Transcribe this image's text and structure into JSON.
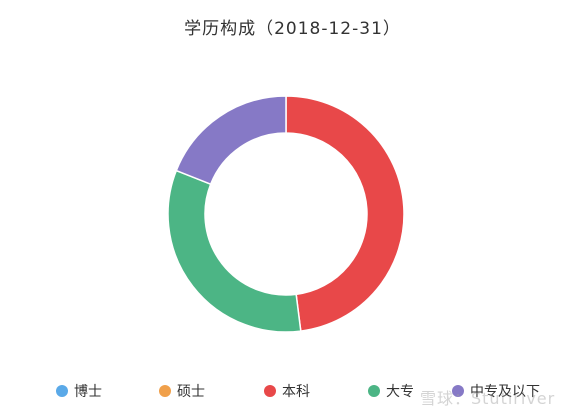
{
  "chart_data": {
    "type": "pie",
    "title": "学历构成（2018-12-31）",
    "categories": [
      "博士",
      "硕士",
      "本科",
      "大专",
      "中专及以下"
    ],
    "values": [
      0,
      0,
      48,
      33,
      19
    ],
    "colors": [
      "#5aa9e8",
      "#f0a04b",
      "#e84849",
      "#4cb585",
      "#8679c6"
    ],
    "legend_position": "bottom"
  },
  "watermark": "雪球：Stutiriver"
}
